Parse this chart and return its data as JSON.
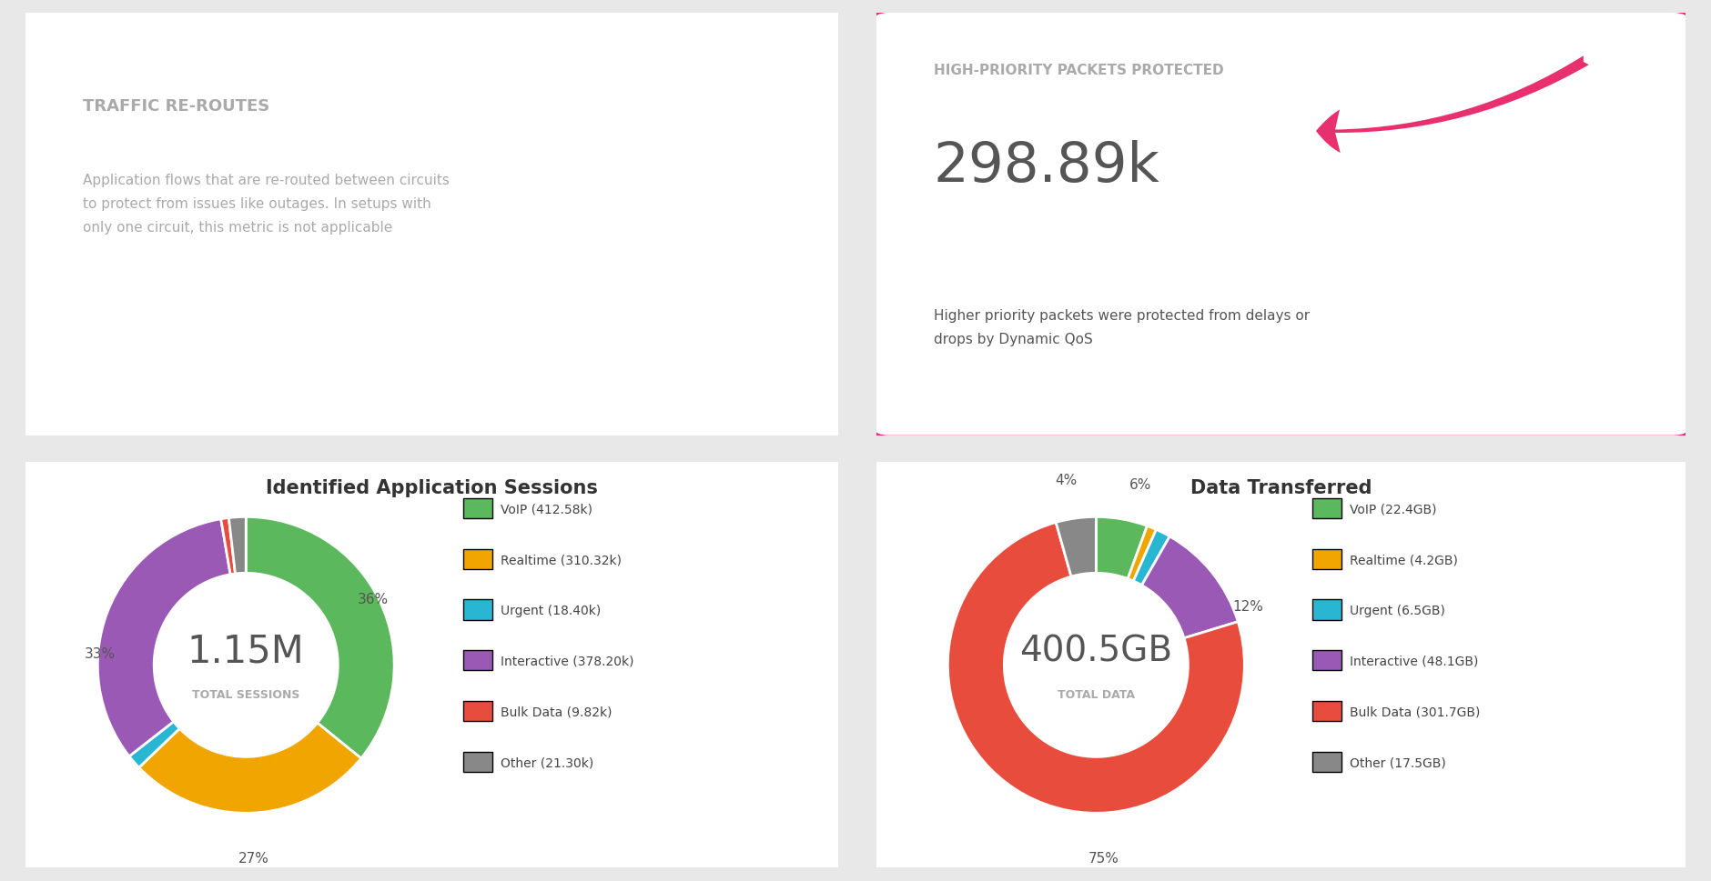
{
  "bg_color": "#e8e8e8",
  "panel_bg": "#ffffff",
  "top_left": {
    "title": "TRAFFIC RE-ROUTES",
    "title_color": "#aaaaaa",
    "body": "Application flows that are re-routed between circuits\nto protect from issues like outages. In setups with\nonly one circuit, this metric is not applicable",
    "body_color": "#aaaaaa"
  },
  "top_right": {
    "highlight_border_color": "#e8306e",
    "label": "HIGH-PRIORITY PACKETS PROTECTED",
    "label_color": "#aaaaaa",
    "value": "298.89k",
    "value_color": "#555555",
    "description": "Higher priority packets were protected from delays or\ndrops by Dynamic QoS",
    "desc_color": "#555555",
    "arrow_color": "#e8306e"
  },
  "bottom_left": {
    "title": "Identified Application Sessions",
    "center_value": "1.15M",
    "center_label": "TOTAL SESSIONS",
    "center_value_color": "#555555",
    "center_label_color": "#aaaaaa",
    "slices": [
      412.58,
      310.32,
      18.4,
      378.2,
      9.82,
      21.3
    ],
    "colors": [
      "#5cb85c",
      "#f0a500",
      "#29b6d3",
      "#9b59b6",
      "#e74c3c",
      "#888888"
    ],
    "labels": [
      "VoIP (412.58k)",
      "Realtime (310.32k)",
      "Urgent (18.40k)",
      "Interactive (378.20k)",
      "Bulk Data (9.82k)",
      "Other (21.30k)"
    ]
  },
  "bottom_right": {
    "title": "Data Transferred",
    "center_value": "400.5GB",
    "center_label": "TOTAL DATA",
    "center_value_color": "#555555",
    "center_label_color": "#aaaaaa",
    "slices": [
      22.4,
      4.2,
      6.5,
      48.1,
      301.7,
      17.5
    ],
    "colors": [
      "#5cb85c",
      "#f0a500",
      "#29b6d3",
      "#9b59b6",
      "#e74c3c",
      "#888888"
    ],
    "labels": [
      "VoIP (22.4GB)",
      "Realtime (4.2GB)",
      "Urgent (6.5GB)",
      "Interactive (48.1GB)",
      "Bulk Data (301.7GB)",
      "Other (17.5GB)"
    ]
  }
}
